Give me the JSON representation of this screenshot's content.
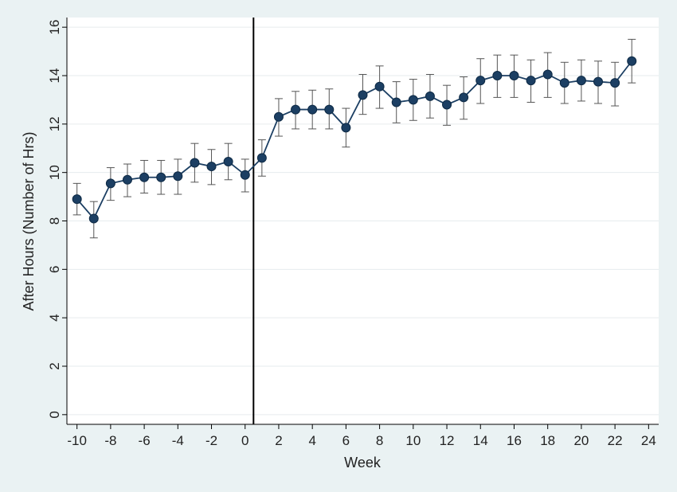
{
  "chart_data": {
    "type": "line",
    "title": "",
    "xlabel": "Week",
    "ylabel": "After Hours (Number of Hrs)",
    "xlim": [
      -10.6,
      24.6
    ],
    "ylim": [
      -0.4,
      16.4
    ],
    "xticks": [
      -10,
      -8,
      -6,
      -4,
      -2,
      0,
      2,
      4,
      6,
      8,
      10,
      12,
      14,
      16,
      18,
      20,
      22,
      24
    ],
    "yticks": [
      0,
      2,
      4,
      6,
      8,
      10,
      12,
      14,
      16
    ],
    "grid": true,
    "vline": 0.5,
    "line_color": "#1c3f63",
    "marker_color": "#1c3f63",
    "errorbar_color": "#555555",
    "plot_background": "#ffffff",
    "page_background": "#eaf2f3",
    "series": [
      {
        "x": [
          -10,
          -9,
          -8,
          -7,
          -6,
          -5,
          -4,
          -3,
          -2,
          -1,
          0,
          1,
          2,
          3,
          4,
          5,
          6,
          7,
          8,
          9,
          10,
          11,
          12,
          13,
          14,
          15,
          16,
          17,
          18,
          19,
          20,
          21,
          22,
          23
        ],
        "y": [
          8.9,
          8.1,
          9.55,
          9.7,
          9.8,
          9.8,
          9.85,
          10.4,
          10.25,
          10.45,
          9.9,
          10.6,
          12.3,
          12.6,
          12.6,
          12.6,
          11.85,
          13.2,
          13.55,
          12.9,
          13.0,
          13.15,
          12.8,
          13.1,
          13.8,
          14.0,
          14.0,
          13.8,
          14.05,
          13.7,
          13.8,
          13.75,
          13.7,
          14.6
        ],
        "lower": [
          8.25,
          7.3,
          8.85,
          9.0,
          9.15,
          9.1,
          9.1,
          9.6,
          9.5,
          9.7,
          9.2,
          9.85,
          11.5,
          11.8,
          11.8,
          11.8,
          11.05,
          12.4,
          12.65,
          12.05,
          12.15,
          12.25,
          11.95,
          12.2,
          12.85,
          13.1,
          13.1,
          12.9,
          13.1,
          12.85,
          12.95,
          12.85,
          12.75,
          13.7
        ],
        "upper": [
          9.55,
          8.8,
          10.2,
          10.35,
          10.5,
          10.5,
          10.55,
          11.2,
          10.95,
          11.2,
          10.55,
          11.35,
          13.05,
          13.35,
          13.4,
          13.45,
          12.65,
          14.05,
          14.4,
          13.75,
          13.85,
          14.05,
          13.6,
          13.95,
          14.7,
          14.85,
          14.85,
          14.65,
          14.95,
          14.55,
          14.65,
          14.6,
          14.55,
          15.5
        ]
      }
    ]
  }
}
